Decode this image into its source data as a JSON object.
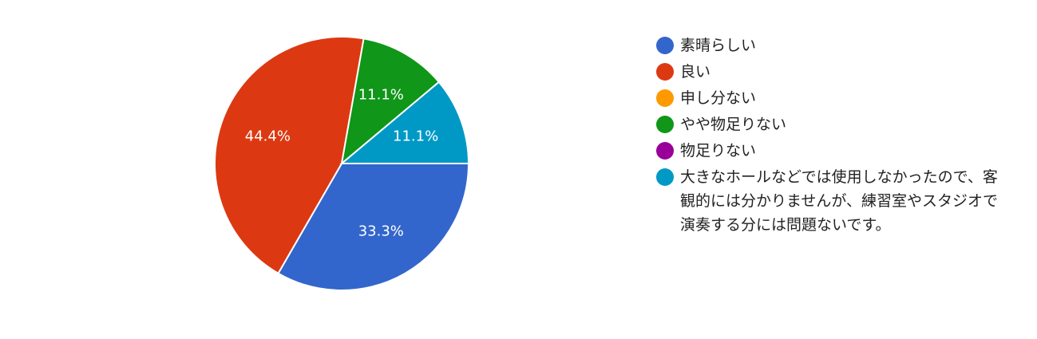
{
  "chart_data": {
    "type": "pie",
    "title": "",
    "legend_position": "right",
    "start_angle_deg": 90,
    "direction": "clockwise",
    "slices": [
      {
        "label": "素晴らしい",
        "value": 33.3,
        "display": "33.3%",
        "color": "#3366cc"
      },
      {
        "label": "良い",
        "value": 44.4,
        "display": "44.4%",
        "color": "#dc3912"
      },
      {
        "label": "申し分ない",
        "value": 0,
        "display": "",
        "color": "#ff9900"
      },
      {
        "label": "やや物足りない",
        "value": 11.1,
        "display": "11.1%",
        "color": "#109618"
      },
      {
        "label": "物足りない",
        "value": 0,
        "display": "",
        "color": "#990099"
      },
      {
        "label": "大きなホールなどでは使用しなかったので、客観的には分かりませんが、練習室やスタジオで演奏する分には問題ないです。",
        "value": 11.1,
        "display": "11.1%",
        "color": "#0099c6"
      }
    ]
  }
}
